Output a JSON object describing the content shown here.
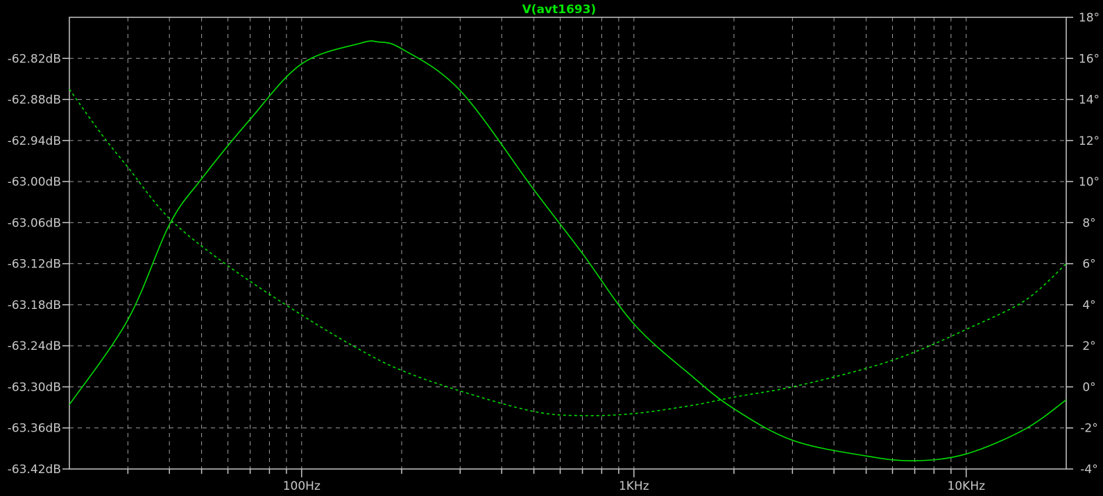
{
  "chart_data": {
    "type": "line",
    "title": "V(avt1693)",
    "x_scale": "log",
    "xlim": [
      20,
      20000
    ],
    "x_tick_labels": [
      {
        "value": 100,
        "label": "100Hz"
      },
      {
        "value": 1000,
        "label": "1KHz"
      },
      {
        "value": 10000,
        "label": "10KHz"
      }
    ],
    "left_axis": {
      "ylim": [
        -63.42,
        -62.76
      ],
      "ticks": [
        -62.82,
        -62.88,
        -62.94,
        -63.0,
        -63.06,
        -63.12,
        -63.18,
        -63.24,
        -63.3,
        -63.36,
        -63.42
      ],
      "tick_labels": [
        "-62.82dB",
        "-62.88dB",
        "-62.94dB",
        "-63.00dB",
        "-63.06dB",
        "-63.12dB",
        "-63.18dB",
        "-63.24dB",
        "-63.30dB",
        "-63.36dB",
        "-63.42dB"
      ]
    },
    "right_axis": {
      "ylim": [
        -4,
        18
      ],
      "ticks": [
        18,
        16,
        14,
        12,
        10,
        8,
        6,
        4,
        2,
        0,
        -2,
        -4
      ],
      "tick_labels": [
        "18°",
        "16°",
        "14°",
        "12°",
        "10°",
        "8°",
        "6°",
        "4°",
        "2°",
        "0°",
        "-2°",
        "-4°"
      ]
    },
    "grid": true,
    "series": [
      {
        "style": "solid",
        "axis": "left",
        "color": "#00dd00",
        "x": [
          20,
          30,
          40,
          50,
          70,
          100,
          150,
          170,
          200,
          300,
          500,
          700,
          1000,
          1500,
          2000,
          3000,
          5000,
          7000,
          10000,
          15000,
          20000
        ],
        "y": [
          -63.326,
          -63.202,
          -63.063,
          -62.996,
          -62.909,
          -62.828,
          -62.798,
          -62.796,
          -62.806,
          -62.867,
          -63.012,
          -63.105,
          -63.208,
          -63.285,
          -63.332,
          -63.378,
          -63.401,
          -63.408,
          -63.398,
          -63.362,
          -63.319
        ]
      },
      {
        "style": "dashed",
        "axis": "right",
        "color": "#00dd00",
        "x": [
          20,
          25,
          30,
          40,
          60,
          100,
          150,
          200,
          300,
          500,
          700,
          1000,
          1500,
          2000,
          3000,
          5000,
          7000,
          10000,
          15000,
          20000
        ],
        "y": [
          14.5,
          12.3,
          10.7,
          8.2,
          5.9,
          3.5,
          1.8,
          0.8,
          -0.2,
          -1.2,
          -1.4,
          -1.3,
          -0.9,
          -0.5,
          0.0,
          0.9,
          1.7,
          2.8,
          4.2,
          6.0
        ]
      }
    ]
  },
  "colors": {
    "background": "#000000",
    "axis": "#c8c8c8",
    "grid": "#a0a0a0",
    "trace": "#00dd00",
    "title": "#00e600"
  }
}
